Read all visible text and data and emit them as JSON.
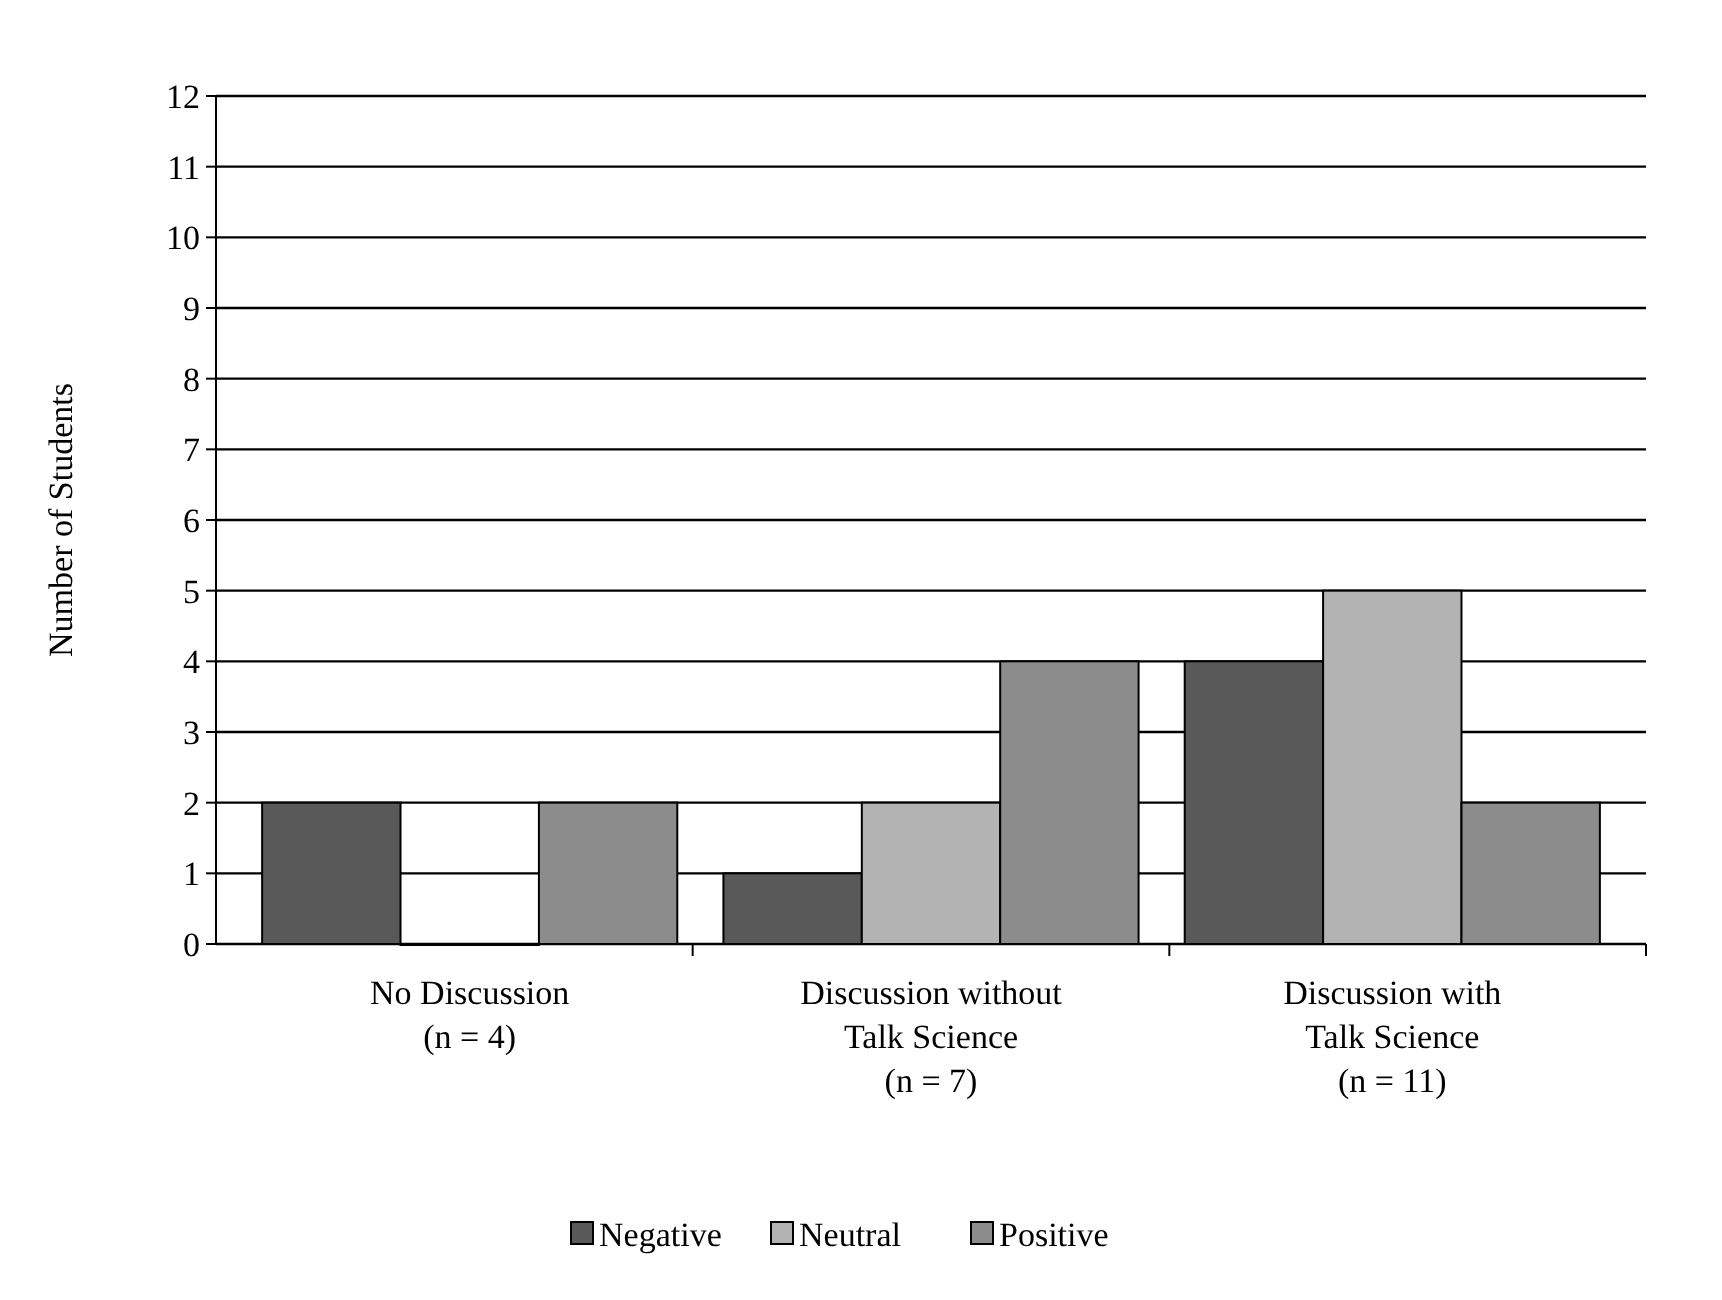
{
  "chart_data": {
    "type": "bar",
    "ylabel": "Number of Students",
    "categories": [
      "No Discussion\n(n = 4)",
      "Discussion without\nTalk Science\n(n = 7)",
      "Discussion with\nTalk Science\n(n = 11)"
    ],
    "series": [
      {
        "name": "Negative",
        "color": "#595959",
        "values": [
          2,
          1,
          4
        ]
      },
      {
        "name": "Neutral",
        "color": "#b3b3b3",
        "values": [
          0,
          2,
          5
        ]
      },
      {
        "name": "Positive",
        "color": "#8c8c8c",
        "values": [
          2,
          4,
          2
        ]
      }
    ],
    "ylim": [
      0,
      12
    ],
    "yticks": [
      0,
      1,
      2,
      3,
      4,
      5,
      6,
      7,
      8,
      9,
      10,
      11,
      12
    ],
    "grid": "y",
    "legend": "bottom"
  }
}
